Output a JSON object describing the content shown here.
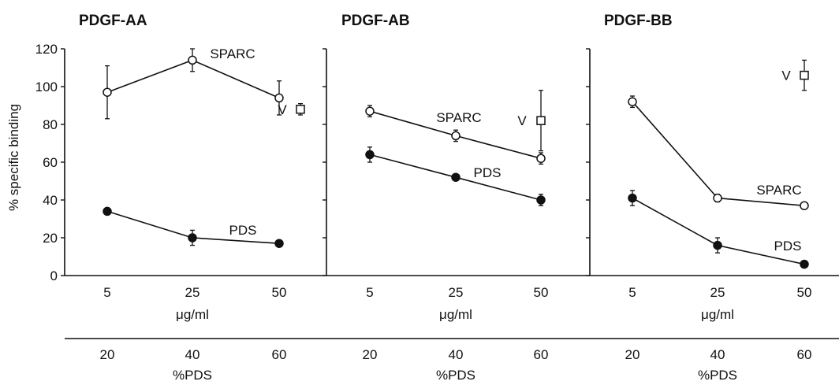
{
  "chart_data": {
    "type": "line",
    "ylabel": "% specific binding",
    "ylim": [
      0,
      120
    ],
    "yticks": [
      0,
      20,
      40,
      60,
      80,
      100,
      120
    ],
    "x_axis_1": {
      "ticks": [
        "5",
        "25",
        "50"
      ],
      "label": "μg/ml"
    },
    "x_axis_2": {
      "ticks": [
        "20",
        "40",
        "60"
      ],
      "label": "%PDS"
    },
    "panels": [
      {
        "title": "PDGF-AA",
        "series": [
          {
            "name": "SPARC",
            "marker": "open-circle",
            "values": [
              97,
              114,
              94
            ],
            "errors": [
              14,
              6,
              9
            ]
          },
          {
            "name": "PDS",
            "marker": "filled-circle",
            "values": [
              34,
              20,
              17
            ],
            "errors": [
              0,
              4,
              0
            ]
          }
        ],
        "vehicle": {
          "label": "V",
          "value": 88,
          "error": 3
        }
      },
      {
        "title": "PDGF-AB",
        "series": [
          {
            "name": "SPARC",
            "marker": "open-circle",
            "values": [
              87,
              74,
              62
            ],
            "errors": [
              3,
              3,
              3
            ]
          },
          {
            "name": "PDS",
            "marker": "filled-circle",
            "values": [
              64,
              52,
              40
            ],
            "errors": [
              4,
              0,
              3
            ]
          }
        ],
        "vehicle": {
          "label": "V",
          "value": 82,
          "error": 16
        }
      },
      {
        "title": "PDGF-BB",
        "series": [
          {
            "name": "SPARC",
            "marker": "open-circle",
            "values": [
              92,
              41,
              37
            ],
            "errors": [
              3,
              2,
              0
            ]
          },
          {
            "name": "PDS",
            "marker": "filled-circle",
            "values": [
              41,
              16,
              6
            ],
            "errors": [
              4,
              4,
              0
            ]
          }
        ],
        "vehicle": {
          "label": "V",
          "value": 106,
          "error": 8
        }
      }
    ]
  }
}
